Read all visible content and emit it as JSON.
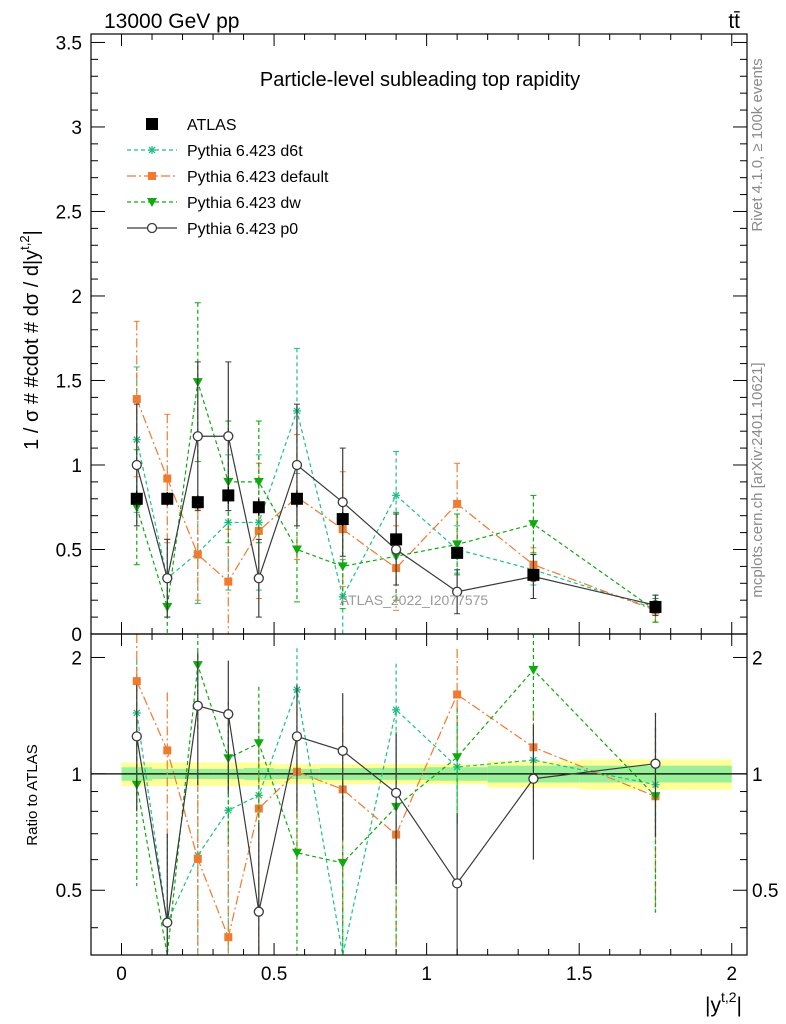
{
  "chart_data": {
    "type": "scatter",
    "title": "Particle-level subleading top rapidity",
    "beam_label": "13000 GeV pp",
    "process_label": "tt̄",
    "ylabel": "1 / σ # #cdot # dσ / d|y^{t,2}|",
    "ylabel_main": "1 / σ # #cdot # dσ / d|y",
    "ylabel_sup": "t,2",
    "ylabel_end": "|",
    "ratio_ylabel": "Ratio to ATLAS",
    "xlabel_base": "|y",
    "xlabel_sup": "t,2",
    "xlabel_end": "|",
    "analysis_label": "ATLAS_2022_I2077575",
    "side_label_rivet": "Rivet 4.1.0, ≥ 100k events",
    "side_label_site": "mcplots.cern.ch [arXiv:2401.10621]",
    "xlim": [
      -0.1,
      2.05
    ],
    "ylim": [
      0,
      3.55
    ],
    "ratio_ylim": [
      0.34,
      2.3
    ],
    "x_ticks": [
      0,
      0.5,
      1,
      1.5,
      2
    ],
    "x_tick_labels": [
      "0",
      "0.5",
      "1",
      "1.5",
      "2"
    ],
    "y_ticks": [
      0,
      0.5,
      1,
      1.5,
      2,
      2.5,
      3,
      3.5
    ],
    "y_tick_labels": [
      "0",
      "0.5",
      "1",
      "1.5",
      "2",
      "2.5",
      "3",
      "3.5"
    ],
    "ratio_ticks": [
      0.5,
      1,
      2
    ],
    "ratio_tick_labels": [
      "0.5",
      "1",
      "2"
    ],
    "bins": [
      [
        0,
        0.1
      ],
      [
        0.1,
        0.2
      ],
      [
        0.2,
        0.3
      ],
      [
        0.3,
        0.4
      ],
      [
        0.4,
        0.5
      ],
      [
        0.5,
        0.65
      ],
      [
        0.65,
        0.8
      ],
      [
        0.8,
        1.0
      ],
      [
        1.0,
        1.2
      ],
      [
        1.2,
        1.5
      ],
      [
        1.5,
        2.0
      ]
    ],
    "x": [
      0.05,
      0.15,
      0.25,
      0.35,
      0.45,
      0.575,
      0.725,
      0.9,
      1.1,
      1.35,
      1.75
    ],
    "data": {
      "name": "ATLAS",
      "values": [
        0.8,
        0.8,
        0.78,
        0.82,
        0.75,
        0.8,
        0.68,
        0.56,
        0.48,
        0.35,
        0.16
      ],
      "errors": [
        0.05,
        0.04,
        0.04,
        0.05,
        0.05,
        0.05,
        0.04,
        0.03,
        0.03,
        0.02,
        0.015
      ],
      "stat_band_rel": [
        0.04,
        0.03,
        0.03,
        0.03,
        0.035,
        0.03,
        0.035,
        0.035,
        0.04,
        0.05,
        0.05
      ],
      "total_band_rel": [
        0.07,
        0.07,
        0.07,
        0.07,
        0.07,
        0.06,
        0.06,
        0.06,
        0.06,
        0.08,
        0.09
      ]
    },
    "series": [
      {
        "name": "Pythia 6.423 d6t",
        "color": "#1fbf8a",
        "marker": "star",
        "dash": "4,3",
        "values": [
          1.15,
          0.33,
          0.48,
          0.66,
          0.66,
          1.32,
          0.22,
          0.82,
          0.5,
          0.38,
          0.15
        ],
        "errors": [
          0.43,
          0.23,
          0.3,
          0.4,
          0.4,
          0.37,
          0.22,
          0.26,
          0.14,
          0.09,
          0.08
        ]
      },
      {
        "name": "Pythia 6.423 default",
        "color": "#f07a30",
        "marker": "square",
        "dash": "9,3,2,3",
        "values": [
          1.39,
          0.92,
          0.47,
          0.31,
          0.61,
          0.81,
          0.62,
          0.39,
          0.77,
          0.41,
          0.14
        ],
        "errors": [
          0.46,
          0.38,
          0.27,
          0.31,
          0.4,
          0.37,
          0.34,
          0.25,
          0.24,
          0.1,
          0.07
        ]
      },
      {
        "name": "Pythia 6.423 dw",
        "color": "#0eaa0e",
        "marker": "triangle",
        "dash": "4,3",
        "values": [
          0.75,
          0.16,
          1.49,
          0.9,
          0.9,
          0.5,
          0.4,
          0.46,
          0.53,
          0.65,
          0.14
        ],
        "errors": [
          0.34,
          0.16,
          0.47,
          0.36,
          0.36,
          0.31,
          0.25,
          0.26,
          0.18,
          0.17,
          0.07
        ]
      },
      {
        "name": "Pythia 6.423 p0",
        "color": "#3a3a3a",
        "marker": "circle",
        "dash": "",
        "values": [
          1.0,
          0.33,
          1.17,
          1.17,
          0.33,
          1.0,
          0.78,
          0.5,
          0.25,
          0.34,
          0.17
        ],
        "errors": [
          0.36,
          0.23,
          0.44,
          0.44,
          0.23,
          0.36,
          0.32,
          0.21,
          0.13,
          0.13,
          0.06
        ]
      }
    ]
  }
}
